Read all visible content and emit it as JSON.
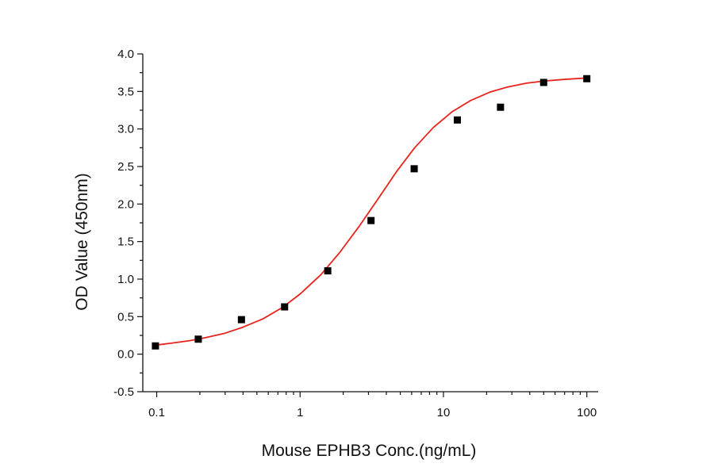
{
  "chart_data": {
    "type": "scatter",
    "title": "",
    "xlabel": "Mouse EPHB3 Conc.(ng/mL)",
    "ylabel": "OD Value (450nm)",
    "x_scale": "log",
    "xlim": [
      0.08,
      120
    ],
    "ylim": [
      -0.5,
      4.0
    ],
    "x_ticks": [
      {
        "value": 0.1,
        "label": "0.1"
      },
      {
        "value": 1,
        "label": "1"
      },
      {
        "value": 10,
        "label": "10"
      },
      {
        "value": 100,
        "label": "100"
      }
    ],
    "y_ticks": [
      {
        "value": -0.5,
        "label": "-0.5"
      },
      {
        "value": 0.0,
        "label": "0.0"
      },
      {
        "value": 0.5,
        "label": "0.5"
      },
      {
        "value": 1.0,
        "label": "1.0"
      },
      {
        "value": 1.5,
        "label": "1.5"
      },
      {
        "value": 2.0,
        "label": "2.0"
      },
      {
        "value": 2.5,
        "label": "2.5"
      },
      {
        "value": 3.0,
        "label": "3.0"
      },
      {
        "value": 3.5,
        "label": "3.5"
      },
      {
        "value": 4.0,
        "label": "4.0"
      }
    ],
    "grid": false,
    "points": {
      "x": [
        0.098,
        0.195,
        0.39,
        0.78,
        1.56,
        3.125,
        6.25,
        12.5,
        25,
        50,
        100
      ],
      "y": [
        0.11,
        0.2,
        0.46,
        0.63,
        1.11,
        1.78,
        2.47,
        3.12,
        3.29,
        3.62,
        3.67
      ],
      "marker": "square",
      "color": "#000000"
    },
    "fit_curve": {
      "type": "4-parameter logistic",
      "color": "#e8231c",
      "samples": {
        "x": [
          0.098,
          0.13,
          0.17,
          0.22,
          0.3,
          0.4,
          0.55,
          0.75,
          1.0,
          1.4,
          1.9,
          2.6,
          3.5,
          4.7,
          6.3,
          8.5,
          11.5,
          15.5,
          21,
          28,
          38,
          51,
          69,
          100
        ],
        "y": [
          0.12,
          0.15,
          0.18,
          0.22,
          0.28,
          0.36,
          0.47,
          0.62,
          0.8,
          1.06,
          1.36,
          1.71,
          2.07,
          2.43,
          2.75,
          3.02,
          3.23,
          3.38,
          3.49,
          3.56,
          3.61,
          3.64,
          3.66,
          3.68
        ]
      }
    }
  }
}
